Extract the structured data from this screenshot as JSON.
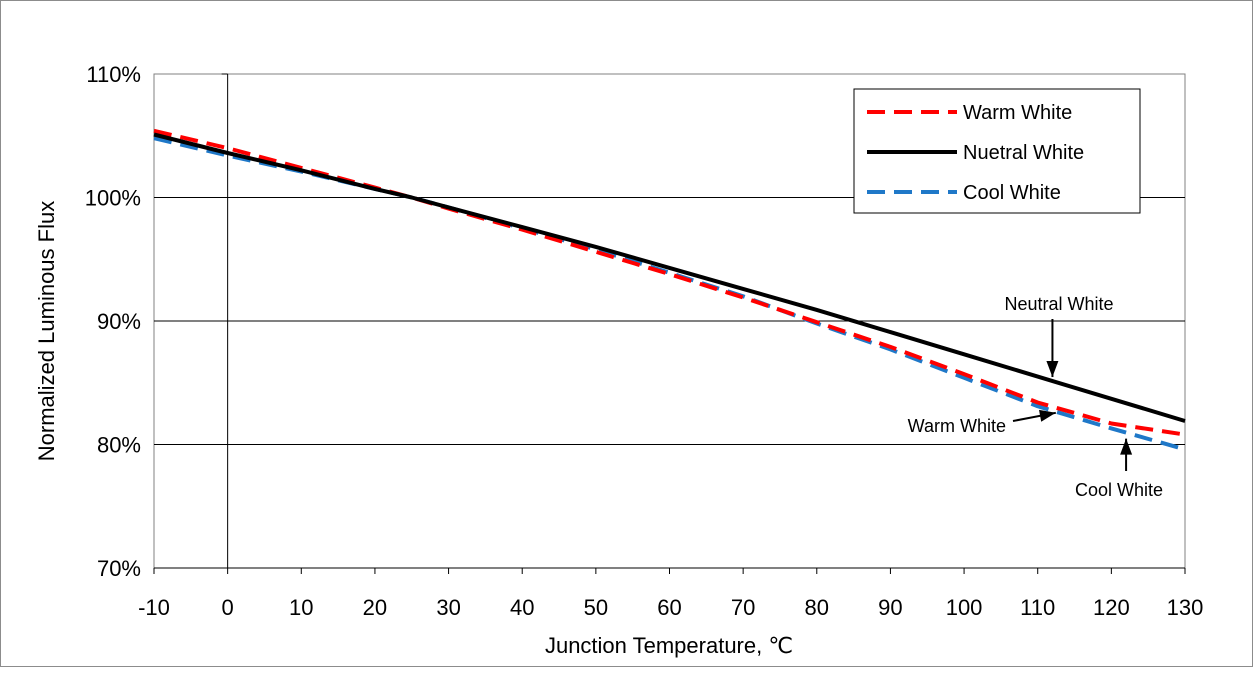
{
  "chart_data": {
    "type": "line",
    "title": "",
    "xlabel": "Junction Temperature, ℃",
    "ylabel": "Normalized Luminous Flux",
    "xlim": [
      -10,
      130
    ],
    "ylim": [
      70,
      110
    ],
    "x_ticks": [
      -10,
      0,
      10,
      20,
      30,
      40,
      50,
      60,
      70,
      80,
      90,
      100,
      110,
      120,
      130
    ],
    "x_tick_labels": [
      "-10",
      "0",
      "10",
      "20",
      "30",
      "40",
      "50",
      "60",
      "70",
      "80",
      "90",
      "100",
      "110",
      "120",
      "130"
    ],
    "y_ticks": [
      70,
      80,
      90,
      100,
      110
    ],
    "y_tick_labels": [
      "70%",
      "80%",
      "90%",
      "100%",
      "110%"
    ],
    "grid": "horizontal",
    "legend_position": "top-right",
    "x": [
      -10,
      0,
      10,
      20,
      25,
      30,
      40,
      50,
      60,
      70,
      80,
      90,
      100,
      110,
      120,
      130
    ],
    "series": [
      {
        "name": "Warm White",
        "color": "#ff0000",
        "style": "dashed",
        "values": [
          105.4,
          104.0,
          102.4,
          100.8,
          100.0,
          99.1,
          97.4,
          95.6,
          93.8,
          91.9,
          89.9,
          87.9,
          85.7,
          83.4,
          81.7,
          80.8
        ]
      },
      {
        "name": "Nuetral White",
        "color": "#000000",
        "style": "solid",
        "values": [
          105.1,
          103.6,
          102.2,
          100.7,
          100.0,
          99.2,
          97.6,
          96.0,
          94.3,
          92.6,
          90.9,
          89.1,
          87.3,
          85.5,
          83.7,
          81.9
        ]
      },
      {
        "name": "Cool White",
        "color": "#1f78c8",
        "style": "dashed",
        "values": [
          104.8,
          103.4,
          102.1,
          100.7,
          100.0,
          99.2,
          97.5,
          95.8,
          93.9,
          92.0,
          89.8,
          87.7,
          85.4,
          83.1,
          81.3,
          79.6
        ]
      }
    ],
    "annotations": [
      {
        "text": "Neutral White",
        "target_x": 112,
        "target_series": "Nuetral White"
      },
      {
        "text": "Warm White",
        "target_x": 113,
        "target_series": "Warm White"
      },
      {
        "text": "Cool White",
        "target_x": 122,
        "target_series": "Cool White"
      }
    ]
  }
}
